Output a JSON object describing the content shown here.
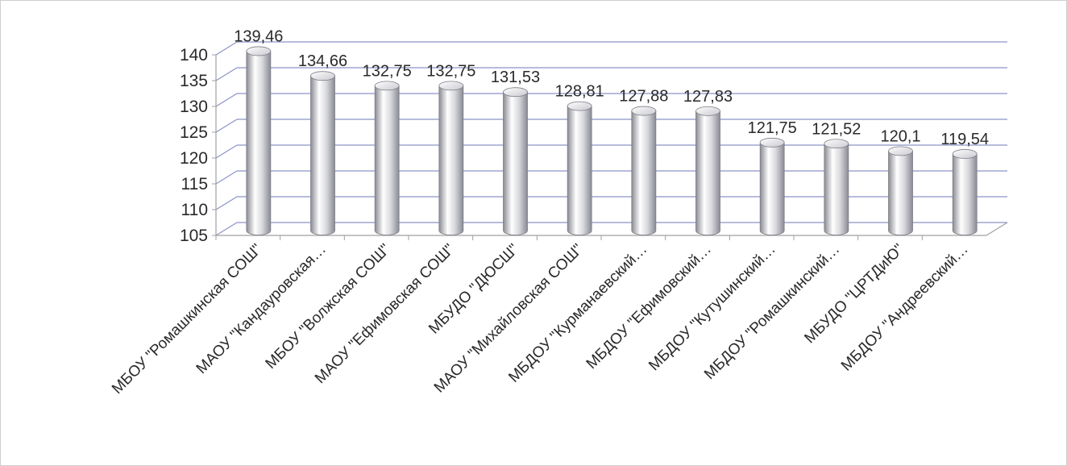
{
  "chart_data": {
    "type": "bar",
    "style": "3d-cylinder",
    "categories": [
      "МБОУ \"Ромашкинская СОШ\"",
      "МАОУ \"Кандауровская…",
      "МБОУ \"Волжская СОШ\"",
      "МАОУ \"Ефимовская  СОШ\"",
      "МБУДО \"ДЮСШ\"",
      "МАОУ \"Михайловская СОШ\"",
      "МБДОУ \"Курманаевский…",
      "МБДОУ \"Ефимовский…",
      "МБДОУ \"Кутушинский…",
      "МБДОУ \"Ромашкинский…",
      "МБУДО \"ЦРТДиЮ\"",
      "МБДОУ \"Андреевский…"
    ],
    "values": [
      139.46,
      134.66,
      132.75,
      132.75,
      131.53,
      128.81,
      127.88,
      127.83,
      121.75,
      121.52,
      120.1,
      119.54
    ],
    "data_labels": [
      "139,46",
      "134,66",
      "132,75",
      "132,75",
      "131,53",
      "128,81",
      "127,88",
      "127,83",
      "121,75",
      "121,52",
      "120,1",
      "119,54"
    ],
    "y_ticks": [
      "105",
      "110",
      "115",
      "120",
      "125",
      "130",
      "135",
      "140"
    ],
    "ylim": [
      105,
      140
    ],
    "y_step": 5,
    "grid": true,
    "legend": "none",
    "title": "",
    "xlabel": "",
    "ylabel": "",
    "colors": {
      "bar_light": "#ffffff",
      "bar_mid": "#d8d8de",
      "bar_dark": "#8a8a94",
      "grid": "#8c93c8",
      "axis": "#a0a0a0",
      "text": "#2a2a2a"
    }
  }
}
